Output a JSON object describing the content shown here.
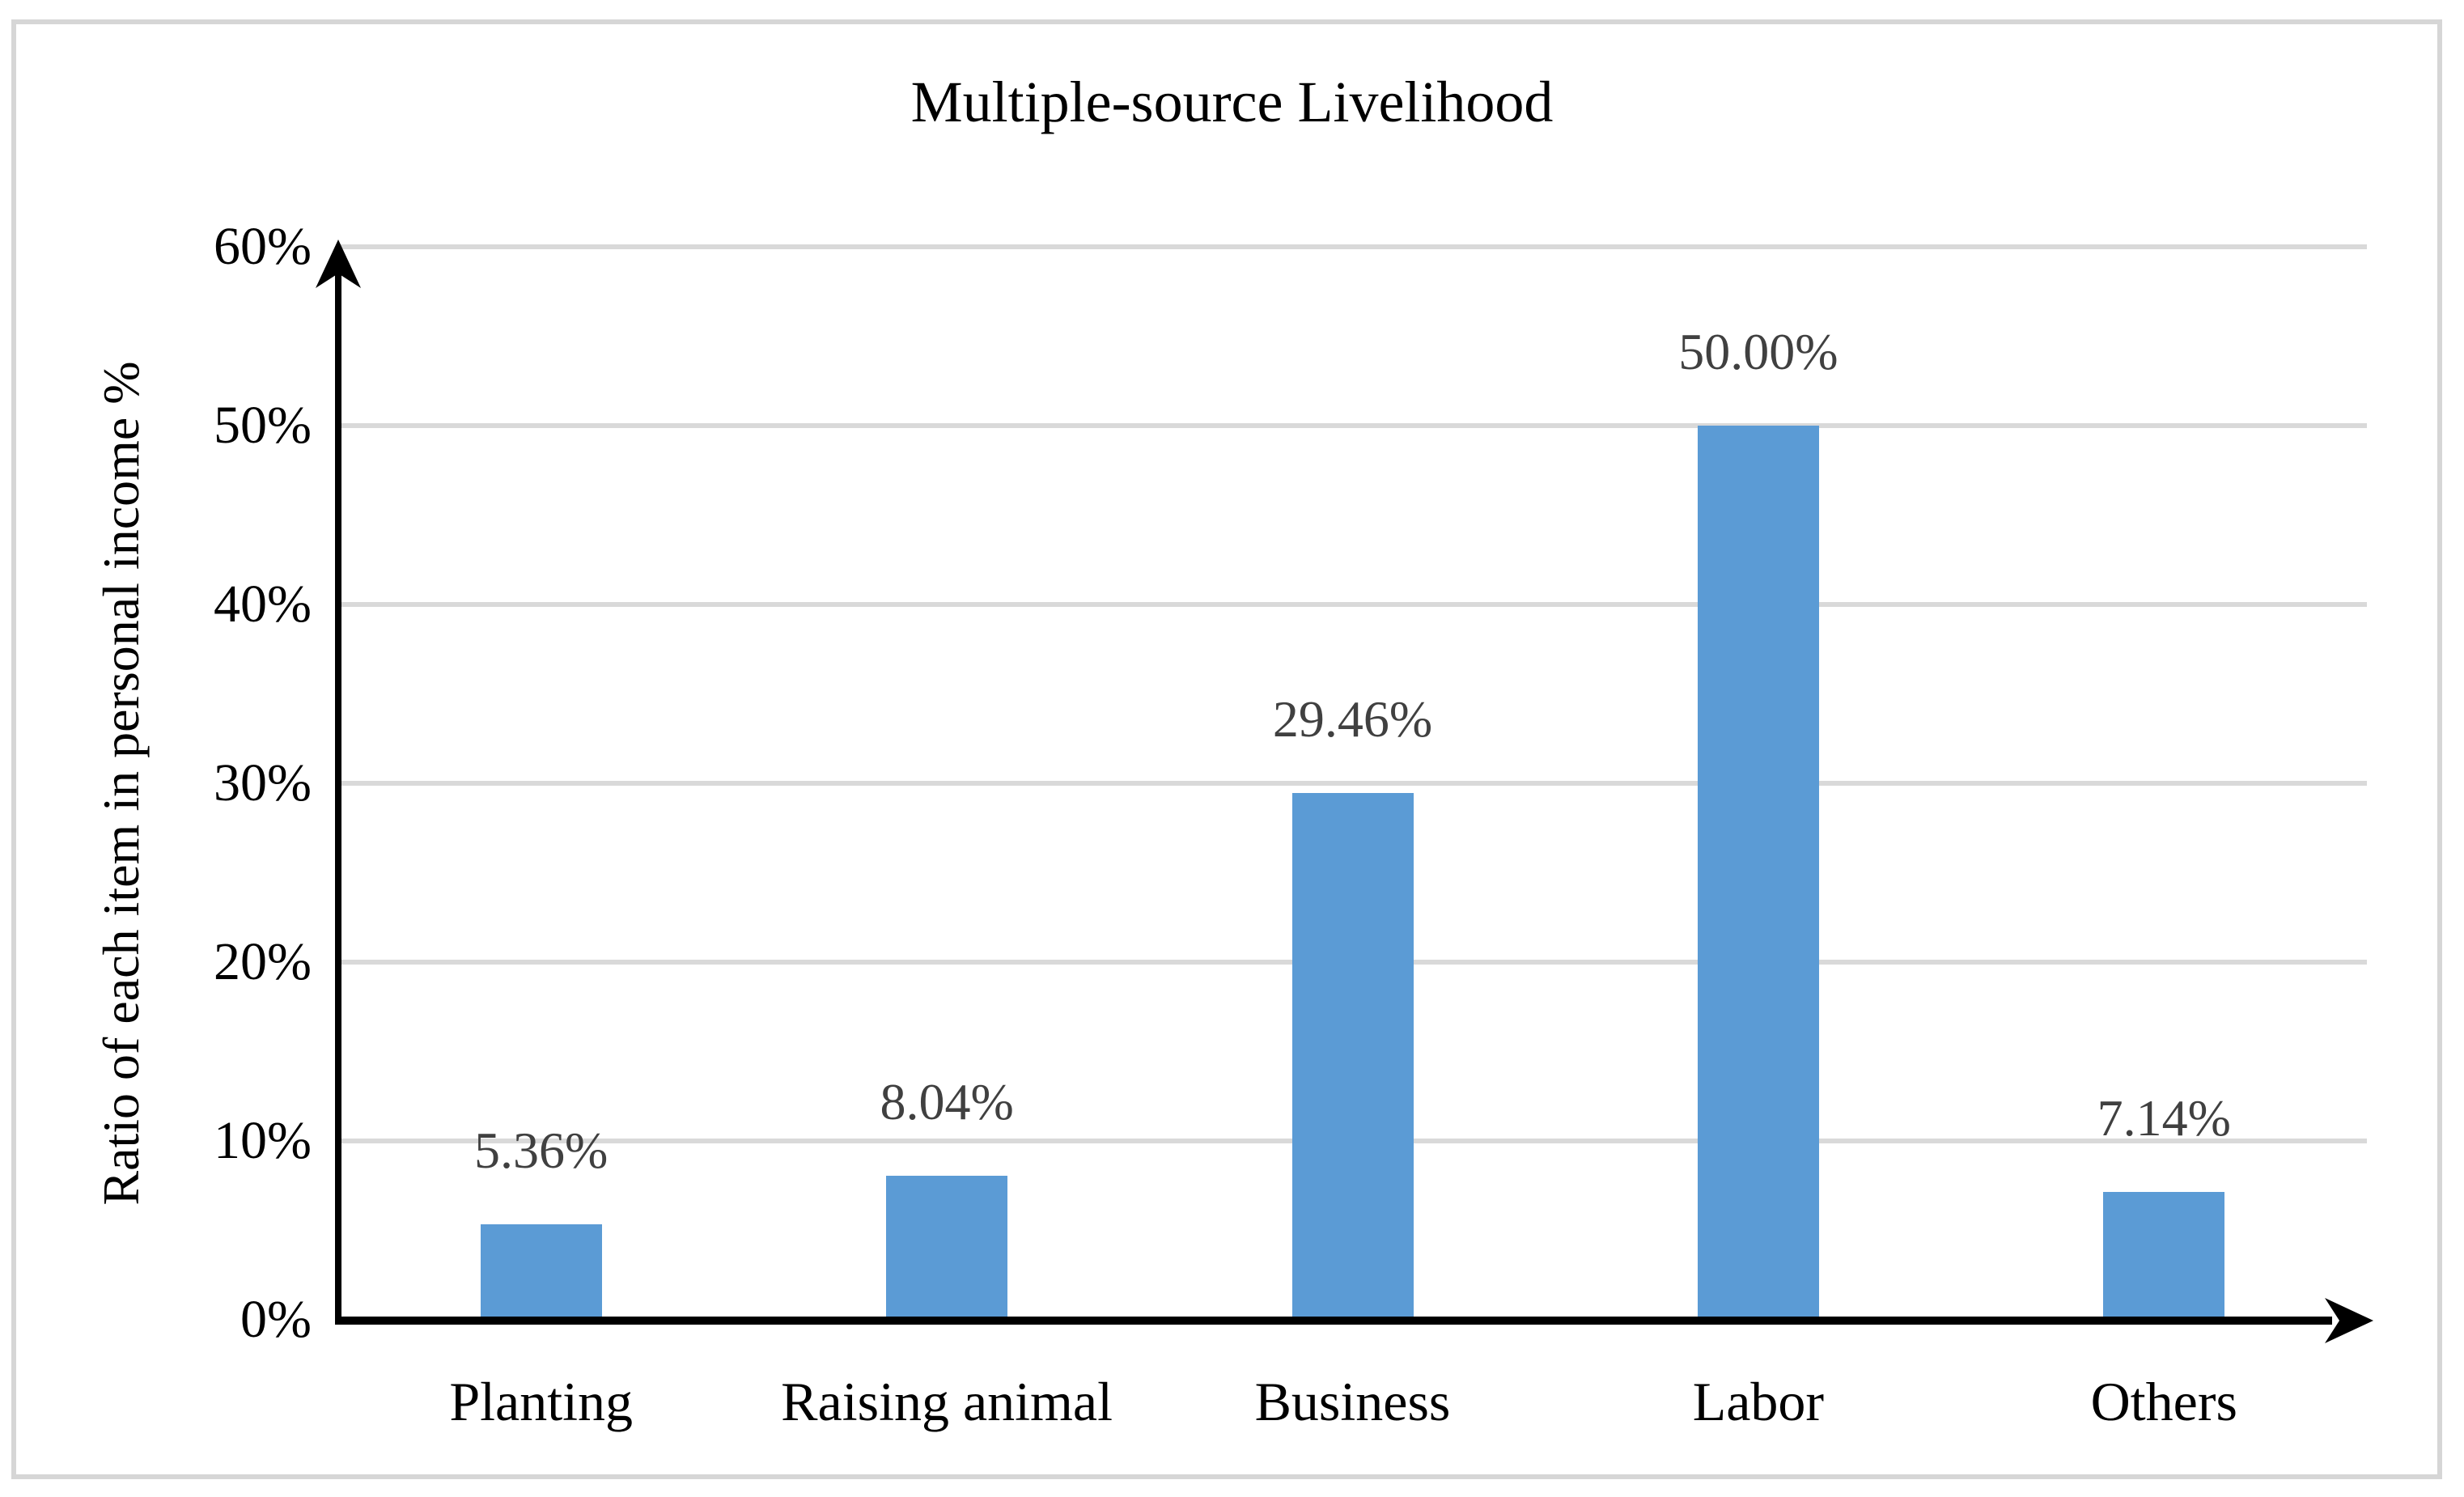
{
  "title": "Multiple-source Livelihood",
  "chart_data": {
    "type": "bar",
    "title": "Multiple-source Livelihood",
    "xlabel": "",
    "ylabel": "Ratio of each item in personal income %",
    "categories": [
      "Planting",
      "Raising animal",
      "Business",
      "Labor",
      "Others"
    ],
    "values": [
      5.36,
      8.04,
      29.46,
      50.0,
      7.14
    ],
    "value_labels": [
      "5.36%",
      "8.04%",
      "29.46%",
      "50.00%",
      "7.14%"
    ],
    "ylim": [
      0,
      60
    ],
    "yticks": [
      {
        "value": 0,
        "label": "0%"
      },
      {
        "value": 10,
        "label": "10%"
      },
      {
        "value": 20,
        "label": "20%"
      },
      {
        "value": 30,
        "label": "30%"
      },
      {
        "value": 40,
        "label": "40%"
      },
      {
        "value": 50,
        "label": "50%"
      },
      {
        "value": 60,
        "label": "60%"
      }
    ],
    "grid": "horizontal",
    "legend": "none",
    "colors": {
      "bar": "#5b9bd5",
      "gridline": "#d9d9d9",
      "value_label": "#404040",
      "axis": "#000000",
      "tick_label": "#000000",
      "frame_border": "#d6d6d6"
    }
  }
}
